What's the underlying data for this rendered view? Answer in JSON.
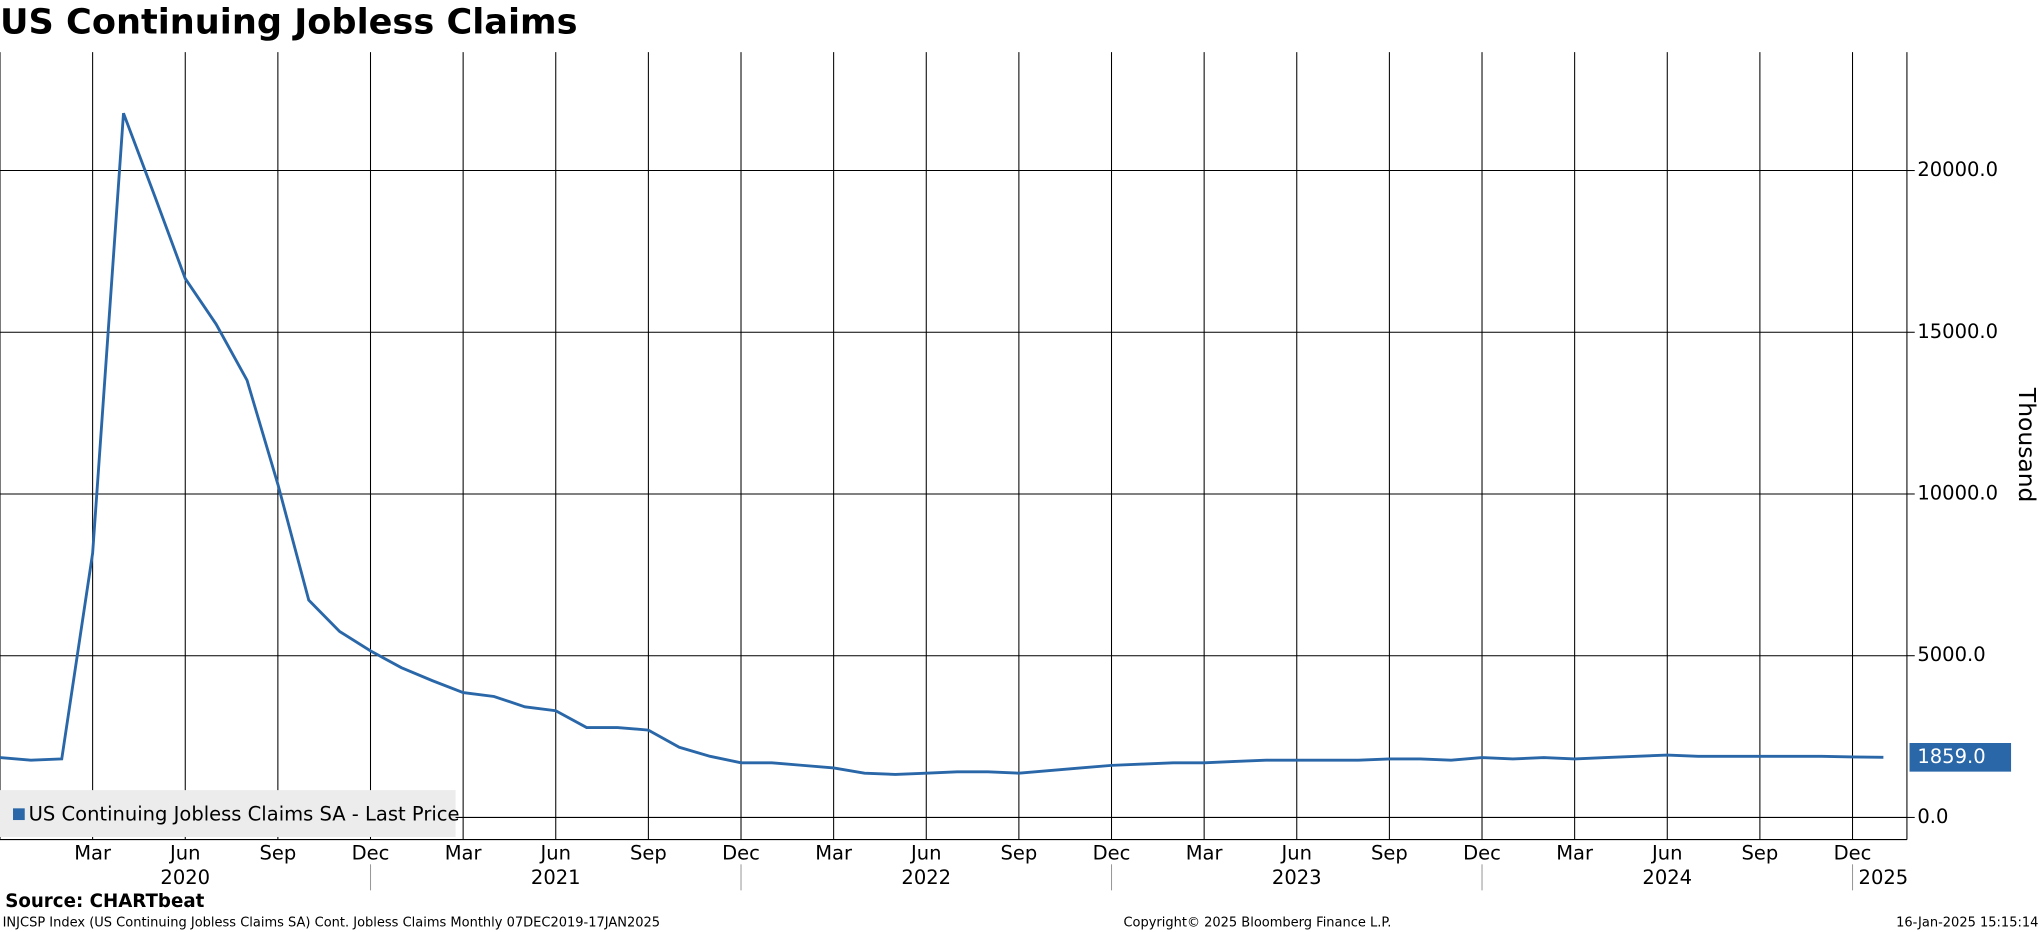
{
  "chart_data": {
    "type": "line",
    "title": "US Continuing Jobless Claims",
    "source": "Source: CHARTbeat",
    "footer_left": "INJCSP Index (US Continuing Jobless Claims SA) Cont. Jobless Claims  Monthly 07DEC2019-17JAN2025",
    "footer_center": "Copyright© 2025 Bloomberg Finance L.P.",
    "footer_right": "16-Jan-2025 15:15:14",
    "ylabel": "Thousand",
    "x": [
      "2019-12",
      "2020-01",
      "2020-02",
      "2020-03",
      "2020-04",
      "2020-05",
      "2020-06",
      "2020-07",
      "2020-08",
      "2020-09",
      "2020-10",
      "2020-11",
      "2020-12",
      "2021-01",
      "2021-02",
      "2021-03",
      "2021-04",
      "2021-05",
      "2021-06",
      "2021-07",
      "2021-08",
      "2021-09",
      "2021-10",
      "2021-11",
      "2021-12",
      "2022-01",
      "2022-02",
      "2022-03",
      "2022-04",
      "2022-05",
      "2022-06",
      "2022-07",
      "2022-08",
      "2022-09",
      "2022-10",
      "2022-11",
      "2022-12",
      "2023-01",
      "2023-02",
      "2023-03",
      "2023-04",
      "2023-05",
      "2023-06",
      "2023-07",
      "2023-08",
      "2023-09",
      "2023-10",
      "2023-11",
      "2023-12",
      "2024-01",
      "2024-02",
      "2024-03",
      "2024-04",
      "2024-05",
      "2024-06",
      "2024-07",
      "2024-08",
      "2024-09",
      "2024-10",
      "2024-11",
      "2024-12",
      "2025-01"
    ],
    "series": [
      {
        "name": "US Continuing Jobless Claims SA - Last Price",
        "color": "#2a67a8",
        "values": [
          1850,
          1770,
          1810,
          8170,
          21770,
          19240,
          16660,
          15250,
          13520,
          10300,
          6720,
          5750,
          5150,
          4630,
          4230,
          3860,
          3740,
          3420,
          3300,
          2780,
          2780,
          2700,
          2170,
          1890,
          1690,
          1690,
          1610,
          1530,
          1370,
          1330,
          1370,
          1410,
          1410,
          1370,
          1450,
          1530,
          1610,
          1650,
          1690,
          1690,
          1730,
          1770,
          1770,
          1770,
          1770,
          1810,
          1810,
          1770,
          1850,
          1810,
          1850,
          1810,
          1850,
          1890,
          1930,
          1890,
          1890,
          1890,
          1890,
          1890,
          1870,
          1859
        ],
        "last_value_label": "1859.0"
      }
    ],
    "ylim": [
      -684,
      23662
    ],
    "yticks": [
      {
        "value": 0,
        "label": "0.0"
      },
      {
        "value": 5000,
        "label": "5000.0"
      },
      {
        "value": 10000,
        "label": "10000.0"
      },
      {
        "value": 15000,
        "label": "15000.0"
      },
      {
        "value": 20000,
        "label": "20000.0"
      }
    ],
    "xticks": [
      {
        "value": "2020-03",
        "label": "Mar"
      },
      {
        "value": "2020-06",
        "label": "Jun"
      },
      {
        "value": "2020-09",
        "label": "Sep"
      },
      {
        "value": "2020-12",
        "label": "Dec"
      },
      {
        "value": "2021-03",
        "label": "Mar"
      },
      {
        "value": "2021-06",
        "label": "Jun"
      },
      {
        "value": "2021-09",
        "label": "Sep"
      },
      {
        "value": "2021-12",
        "label": "Dec"
      },
      {
        "value": "2022-03",
        "label": "Mar"
      },
      {
        "value": "2022-06",
        "label": "Jun"
      },
      {
        "value": "2022-09",
        "label": "Sep"
      },
      {
        "value": "2022-12",
        "label": "Dec"
      },
      {
        "value": "2023-03",
        "label": "Mar"
      },
      {
        "value": "2023-06",
        "label": "Jun"
      },
      {
        "value": "2023-09",
        "label": "Sep"
      },
      {
        "value": "2023-12",
        "label": "Dec"
      },
      {
        "value": "2024-03",
        "label": "Mar"
      },
      {
        "value": "2024-06",
        "label": "Jun"
      },
      {
        "value": "2024-09",
        "label": "Sep"
      },
      {
        "value": "2024-12",
        "label": "Dec"
      }
    ],
    "year_labels": [
      {
        "value": "2020-06",
        "label": "2020"
      },
      {
        "value": "2021-06",
        "label": "2021"
      },
      {
        "value": "2022-06",
        "label": "2022"
      },
      {
        "value": "2023-06",
        "label": "2023"
      },
      {
        "value": "2024-06",
        "label": "2024"
      },
      {
        "value": "2025-01",
        "label": "2025"
      }
    ],
    "grid": true
  }
}
